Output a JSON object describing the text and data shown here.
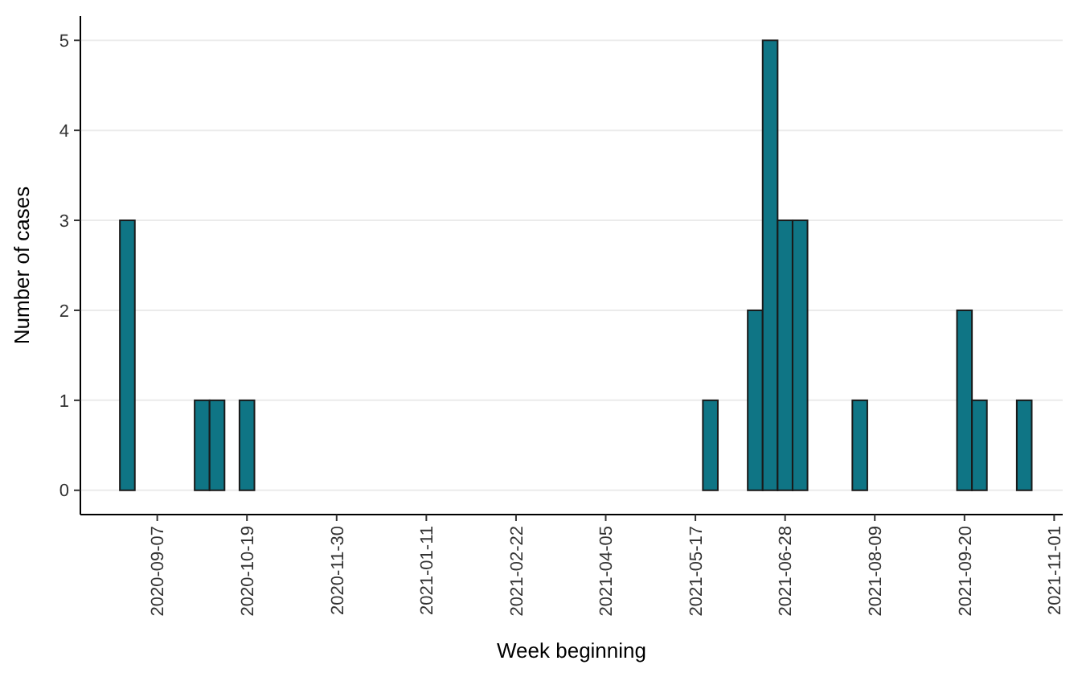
{
  "chart_data": {
    "type": "bar",
    "xlabel": "Week beginning",
    "ylabel": "Number of cases",
    "x": [
      "2020-08-24",
      "2020-09-28",
      "2020-10-05",
      "2020-10-19",
      "2021-05-24",
      "2021-06-14",
      "2021-06-21",
      "2021-06-28",
      "2021-07-05",
      "2021-08-02",
      "2021-09-20",
      "2021-09-27",
      "2021-10-18"
    ],
    "values": [
      3,
      1,
      1,
      1,
      1,
      2,
      5,
      3,
      3,
      1,
      2,
      1,
      1
    ],
    "color": "#0f7585",
    "xlim": [
      "2020-08-02",
      "2021-11-05"
    ],
    "xticks": [
      "2020-09-07",
      "2020-10-19",
      "2020-11-30",
      "2021-01-11",
      "2021-02-22",
      "2021-04-05",
      "2021-05-17",
      "2021-06-28",
      "2021-08-09",
      "2021-09-20",
      "2021-11-01"
    ],
    "ylim": [
      -0.27,
      5.27
    ],
    "yticks": [
      0,
      1,
      2,
      3,
      4,
      5
    ],
    "grid": "y"
  }
}
